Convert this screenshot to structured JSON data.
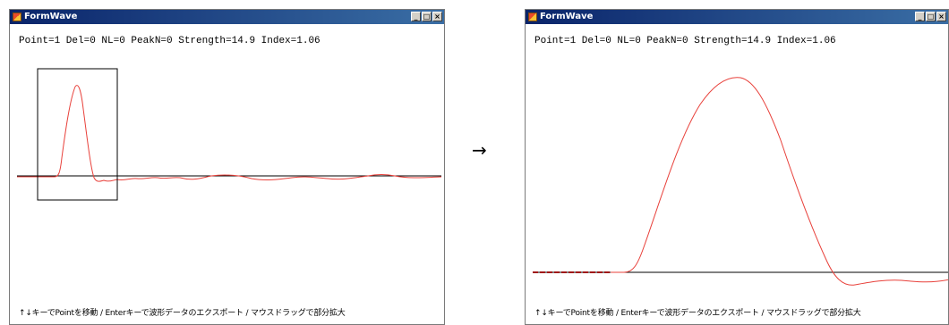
{
  "window": {
    "title": "FormWave",
    "controls": {
      "minimize": "_",
      "maximize": "□",
      "close": "×"
    }
  },
  "status": "Point=1 Del=0 NL=0 PeakN=0 Strength=14.9 Index=1.06",
  "footer_hint": "↑↓キーでPointを移動 / Enterキーで波形データのエクスポート / マウスドラッグで部分拡大",
  "transition_arrow": "→",
  "colors": {
    "waveform": "#e8403a",
    "baseline": "#000000",
    "titlebar": "#0a246a",
    "selection": "#000000"
  },
  "icons": {
    "app": "formwave-app-icon"
  }
}
